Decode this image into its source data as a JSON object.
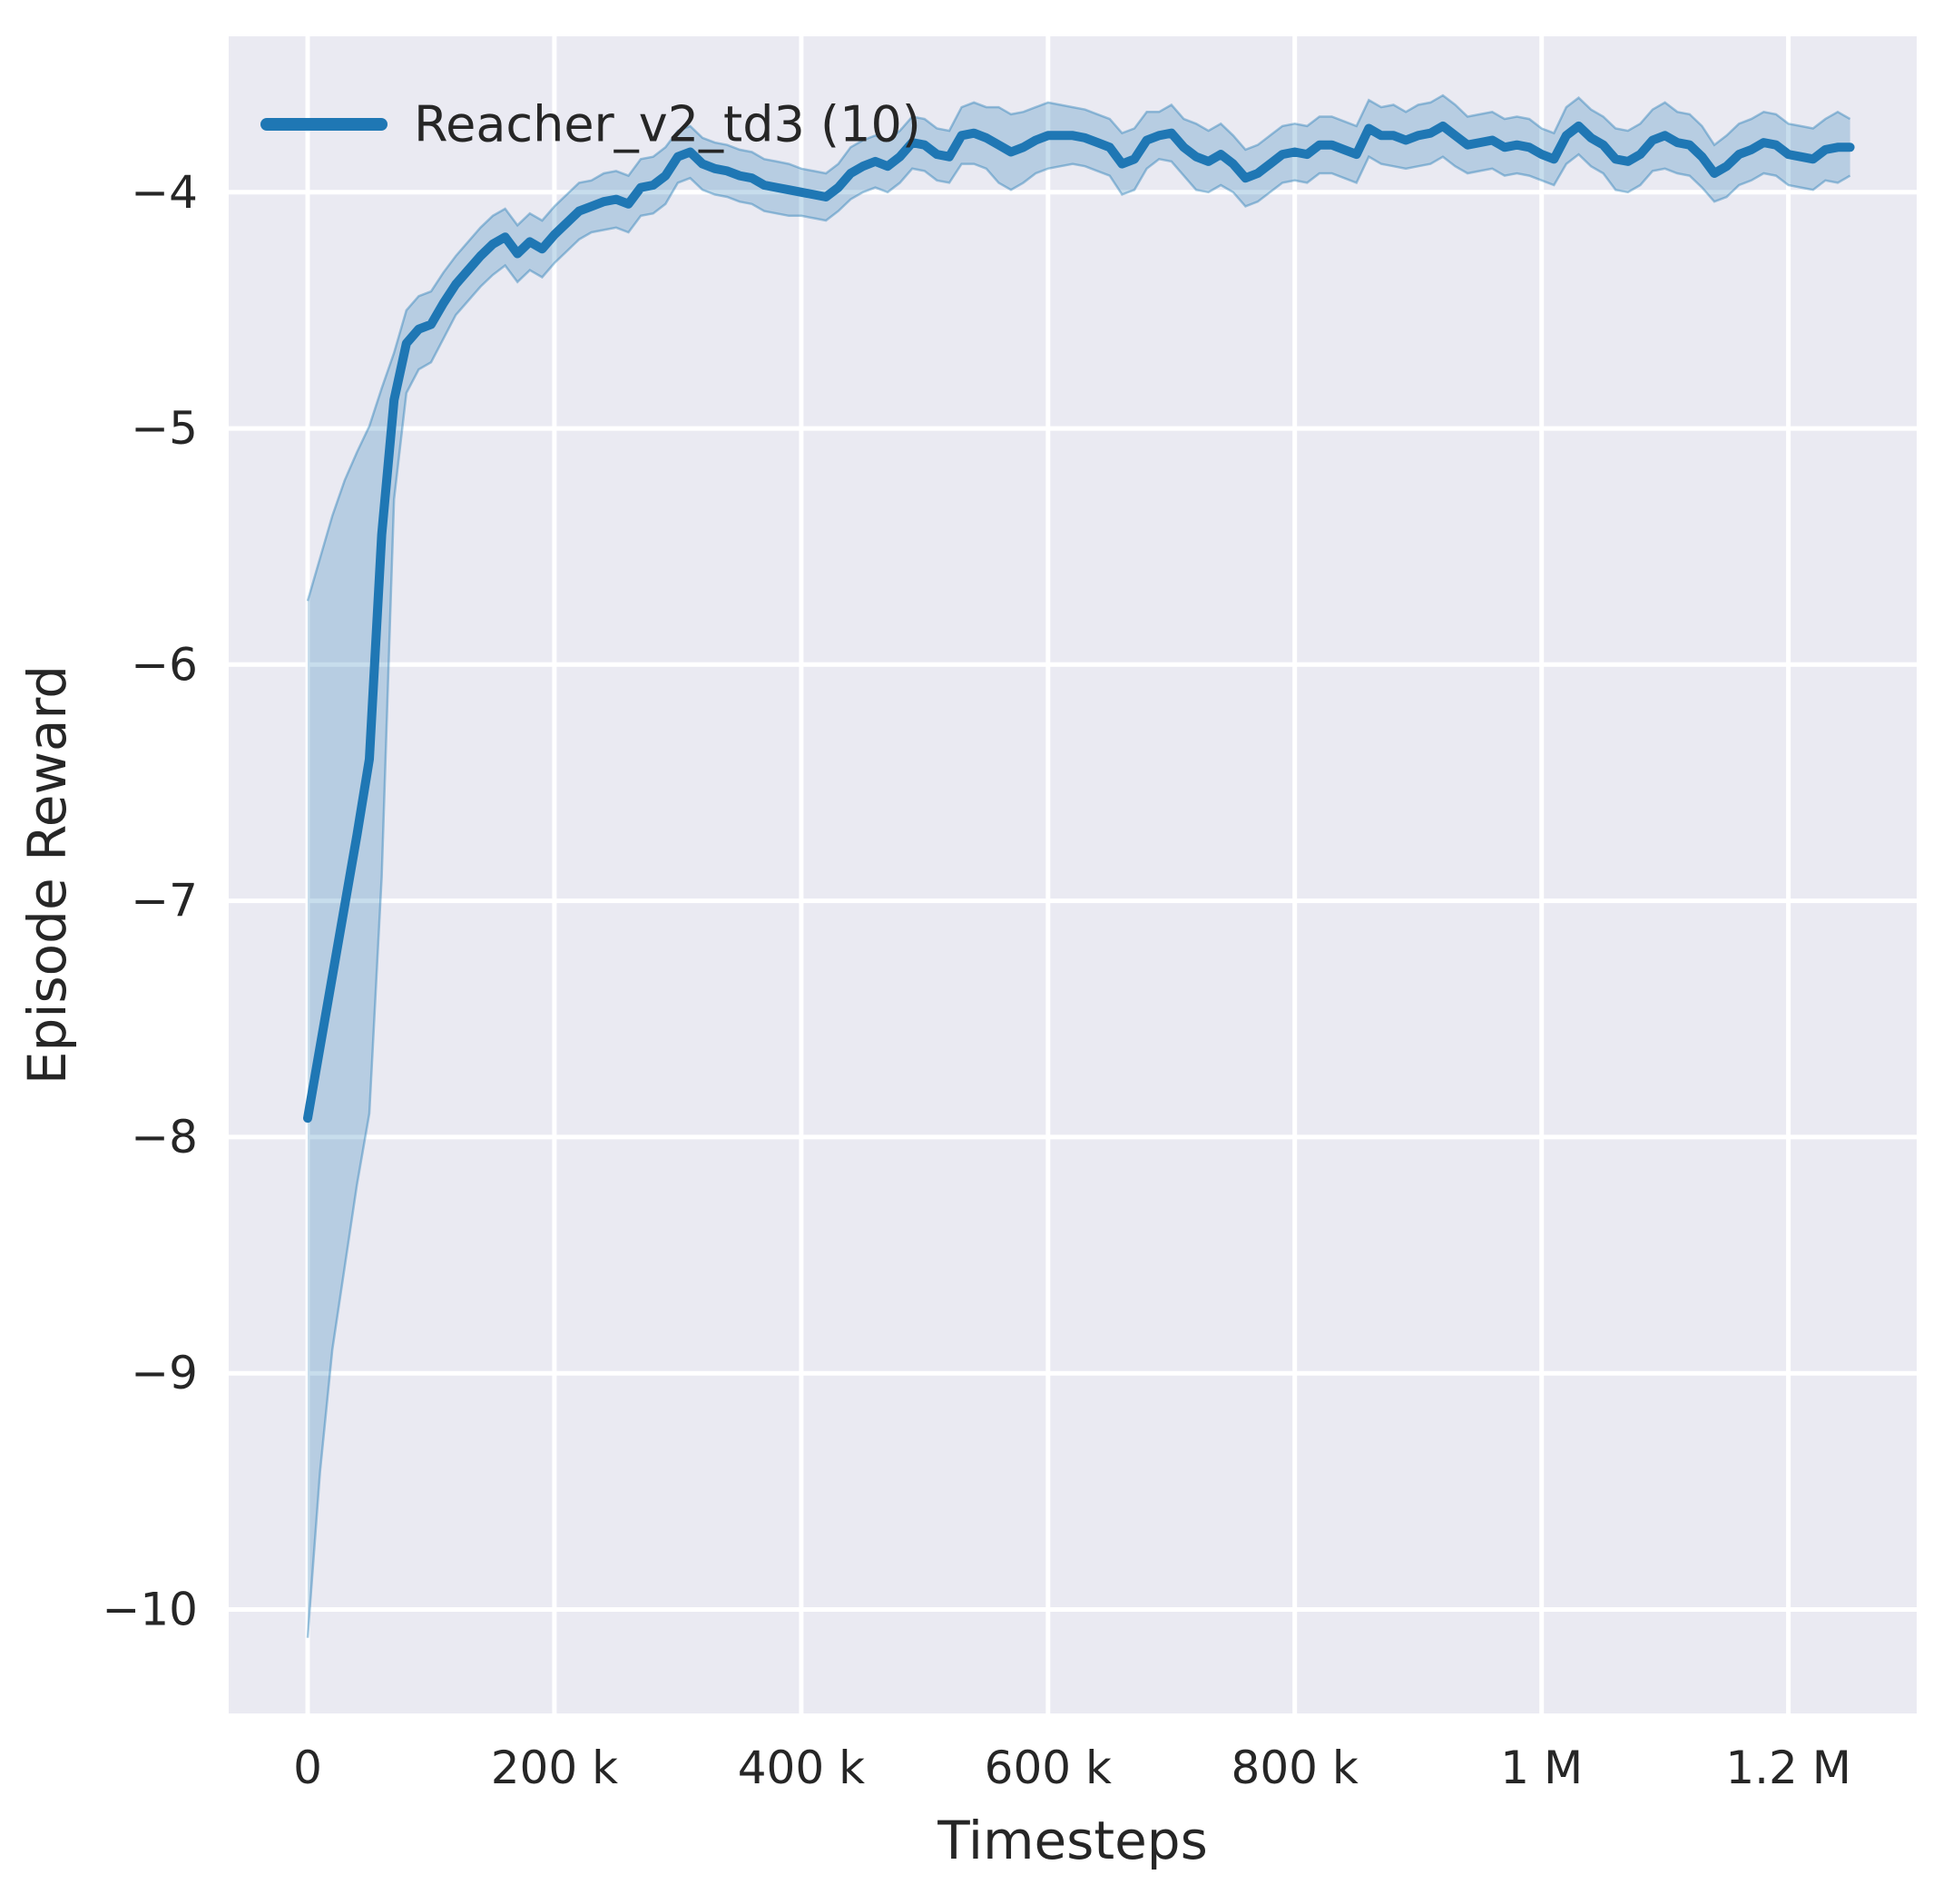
{
  "style": {
    "figure_bg": "#ffffff",
    "panel_bg": "#eaeaf2",
    "grid_color": "#ffffff",
    "text_color": "#262626",
    "accent": "#1f77b4"
  },
  "chart_data": {
    "type": "line",
    "title": "",
    "xlabel": "Timesteps",
    "ylabel": "Episode Reward",
    "grid": true,
    "legend_position": "upper left",
    "legend": [
      {
        "label": "Reacher_v2_td3 (10)",
        "color": "#1f77b4"
      }
    ],
    "xlim": [
      -64000,
      1304000
    ],
    "ylim": [
      -10.44,
      -3.34
    ],
    "x_ticks": {
      "values": [
        0,
        200000,
        400000,
        600000,
        800000,
        1000000,
        1200000
      ],
      "labels": [
        "0",
        "200 k",
        "400 k",
        "600 k",
        "800 k",
        "1 M",
        "1.2 M"
      ]
    },
    "y_ticks": {
      "values": [
        -4,
        -5,
        -6,
        -7,
        -8,
        -9,
        -10
      ],
      "labels": [
        "−4",
        "−5",
        "−6",
        "−7",
        "−8",
        "−9",
        "−10"
      ]
    },
    "series": [
      {
        "name": "Reacher_v2_td3 (10)",
        "color": "#1f77b4",
        "band_alpha": 0.25,
        "x": [
          0,
          10000,
          20000,
          30000,
          40000,
          50000,
          60000,
          70000,
          80000,
          90000,
          100000,
          110000,
          120000,
          130000,
          140000,
          150000,
          160000,
          170000,
          180000,
          190000,
          200000,
          210000,
          220000,
          230000,
          240000,
          250000,
          260000,
          270000,
          280000,
          290000,
          300000,
          310000,
          320000,
          330000,
          340000,
          350000,
          360000,
          370000,
          380000,
          390000,
          400000,
          410000,
          420000,
          430000,
          440000,
          450000,
          460000,
          470000,
          480000,
          490000,
          500000,
          510000,
          520000,
          530000,
          540000,
          550000,
          560000,
          570000,
          580000,
          590000,
          600000,
          610000,
          620000,
          630000,
          640000,
          650000,
          660000,
          670000,
          680000,
          690000,
          700000,
          710000,
          720000,
          730000,
          740000,
          750000,
          760000,
          770000,
          780000,
          790000,
          800000,
          810000,
          820000,
          830000,
          840000,
          850000,
          860000,
          870000,
          880000,
          890000,
          900000,
          910000,
          920000,
          930000,
          940000,
          950000,
          960000,
          970000,
          980000,
          990000,
          1000000,
          1010000,
          1020000,
          1030000,
          1040000,
          1050000,
          1060000,
          1070000,
          1080000,
          1090000,
          1100000,
          1110000,
          1120000,
          1130000,
          1140000,
          1150000,
          1160000,
          1170000,
          1180000,
          1190000,
          1200000,
          1210000,
          1220000,
          1230000,
          1240000,
          1250000
        ],
        "mean": [
          -7.92,
          -7.62,
          -7.32,
          -7.02,
          -6.72,
          -6.4,
          -5.45,
          -4.88,
          -4.64,
          -4.58,
          -4.56,
          -4.47,
          -4.39,
          -4.33,
          -4.27,
          -4.22,
          -4.19,
          -4.26,
          -4.21,
          -4.24,
          -4.18,
          -4.13,
          -4.08,
          -4.06,
          -4.04,
          -4.03,
          -4.05,
          -3.98,
          -3.97,
          -3.93,
          -3.85,
          -3.83,
          -3.88,
          -3.9,
          -3.91,
          -3.93,
          -3.94,
          -3.97,
          -3.98,
          -3.99,
          -4.0,
          -4.01,
          -4.02,
          -3.98,
          -3.92,
          -3.89,
          -3.87,
          -3.89,
          -3.85,
          -3.79,
          -3.8,
          -3.84,
          -3.85,
          -3.76,
          -3.75,
          -3.77,
          -3.8,
          -3.83,
          -3.81,
          -3.78,
          -3.76,
          -3.76,
          -3.76,
          -3.77,
          -3.79,
          -3.81,
          -3.88,
          -3.86,
          -3.78,
          -3.76,
          -3.75,
          -3.81,
          -3.85,
          -3.87,
          -3.84,
          -3.88,
          -3.94,
          -3.92,
          -3.88,
          -3.84,
          -3.83,
          -3.84,
          -3.8,
          -3.8,
          -3.82,
          -3.84,
          -3.73,
          -3.76,
          -3.76,
          -3.78,
          -3.76,
          -3.75,
          -3.72,
          -3.76,
          -3.8,
          -3.79,
          -3.78,
          -3.81,
          -3.8,
          -3.81,
          -3.84,
          -3.86,
          -3.76,
          -3.72,
          -3.77,
          -3.8,
          -3.86,
          -3.87,
          -3.84,
          -3.78,
          -3.76,
          -3.79,
          -3.8,
          -3.85,
          -3.92,
          -3.89,
          -3.84,
          -3.82,
          -3.79,
          -3.8,
          -3.84,
          -3.85,
          -3.86,
          -3.82,
          -3.81,
          -3.81
        ],
        "upper": [
          -5.73,
          -5.55,
          -5.37,
          -5.22,
          -5.1,
          -4.99,
          -4.83,
          -4.68,
          -4.5,
          -4.44,
          -4.42,
          -4.34,
          -4.27,
          -4.21,
          -4.15,
          -4.1,
          -4.07,
          -4.14,
          -4.09,
          -4.12,
          -4.06,
          -4.01,
          -3.96,
          -3.95,
          -3.92,
          -3.91,
          -3.93,
          -3.86,
          -3.85,
          -3.81,
          -3.74,
          -3.72,
          -3.77,
          -3.79,
          -3.8,
          -3.82,
          -3.83,
          -3.86,
          -3.87,
          -3.88,
          -3.9,
          -3.91,
          -3.92,
          -3.88,
          -3.81,
          -3.78,
          -3.76,
          -3.78,
          -3.74,
          -3.68,
          -3.69,
          -3.73,
          -3.74,
          -3.64,
          -3.62,
          -3.64,
          -3.64,
          -3.67,
          -3.66,
          -3.64,
          -3.62,
          -3.63,
          -3.64,
          -3.65,
          -3.67,
          -3.69,
          -3.75,
          -3.73,
          -3.66,
          -3.66,
          -3.63,
          -3.69,
          -3.71,
          -3.74,
          -3.71,
          -3.76,
          -3.82,
          -3.8,
          -3.76,
          -3.72,
          -3.71,
          -3.72,
          -3.68,
          -3.68,
          -3.7,
          -3.72,
          -3.61,
          -3.64,
          -3.63,
          -3.66,
          -3.63,
          -3.62,
          -3.59,
          -3.63,
          -3.68,
          -3.67,
          -3.66,
          -3.69,
          -3.68,
          -3.69,
          -3.73,
          -3.75,
          -3.64,
          -3.6,
          -3.65,
          -3.68,
          -3.73,
          -3.74,
          -3.71,
          -3.65,
          -3.62,
          -3.66,
          -3.67,
          -3.72,
          -3.8,
          -3.76,
          -3.71,
          -3.69,
          -3.66,
          -3.67,
          -3.71,
          -3.72,
          -3.73,
          -3.69,
          -3.66,
          -3.69
        ],
        "lower": [
          -10.12,
          -9.42,
          -8.9,
          -8.55,
          -8.2,
          -7.9,
          -6.9,
          -5.3,
          -4.85,
          -4.75,
          -4.72,
          -4.62,
          -4.52,
          -4.46,
          -4.4,
          -4.35,
          -4.31,
          -4.38,
          -4.33,
          -4.36,
          -4.3,
          -4.25,
          -4.2,
          -4.17,
          -4.16,
          -4.15,
          -4.17,
          -4.1,
          -4.09,
          -4.05,
          -3.96,
          -3.94,
          -3.99,
          -4.01,
          -4.02,
          -4.04,
          -4.05,
          -4.08,
          -4.09,
          -4.1,
          -4.1,
          -4.11,
          -4.12,
          -4.08,
          -4.03,
          -4.0,
          -3.98,
          -4.0,
          -3.96,
          -3.9,
          -3.91,
          -3.95,
          -3.96,
          -3.88,
          -3.88,
          -3.9,
          -3.96,
          -3.99,
          -3.96,
          -3.92,
          -3.9,
          -3.89,
          -3.88,
          -3.89,
          -3.91,
          -3.93,
          -4.01,
          -3.99,
          -3.9,
          -3.86,
          -3.87,
          -3.93,
          -3.99,
          -4.0,
          -3.97,
          -4.0,
          -4.06,
          -4.04,
          -4.0,
          -3.96,
          -3.95,
          -3.96,
          -3.92,
          -3.92,
          -3.94,
          -3.96,
          -3.85,
          -3.88,
          -3.89,
          -3.9,
          -3.89,
          -3.88,
          -3.85,
          -3.89,
          -3.92,
          -3.91,
          -3.9,
          -3.93,
          -3.92,
          -3.93,
          -3.95,
          -3.97,
          -3.88,
          -3.84,
          -3.89,
          -3.92,
          -3.99,
          -4.0,
          -3.97,
          -3.91,
          -3.9,
          -3.92,
          -3.93,
          -3.98,
          -4.04,
          -4.02,
          -3.97,
          -3.95,
          -3.92,
          -3.93,
          -3.97,
          -3.98,
          -3.99,
          -3.95,
          -3.96,
          -3.93
        ]
      }
    ]
  }
}
